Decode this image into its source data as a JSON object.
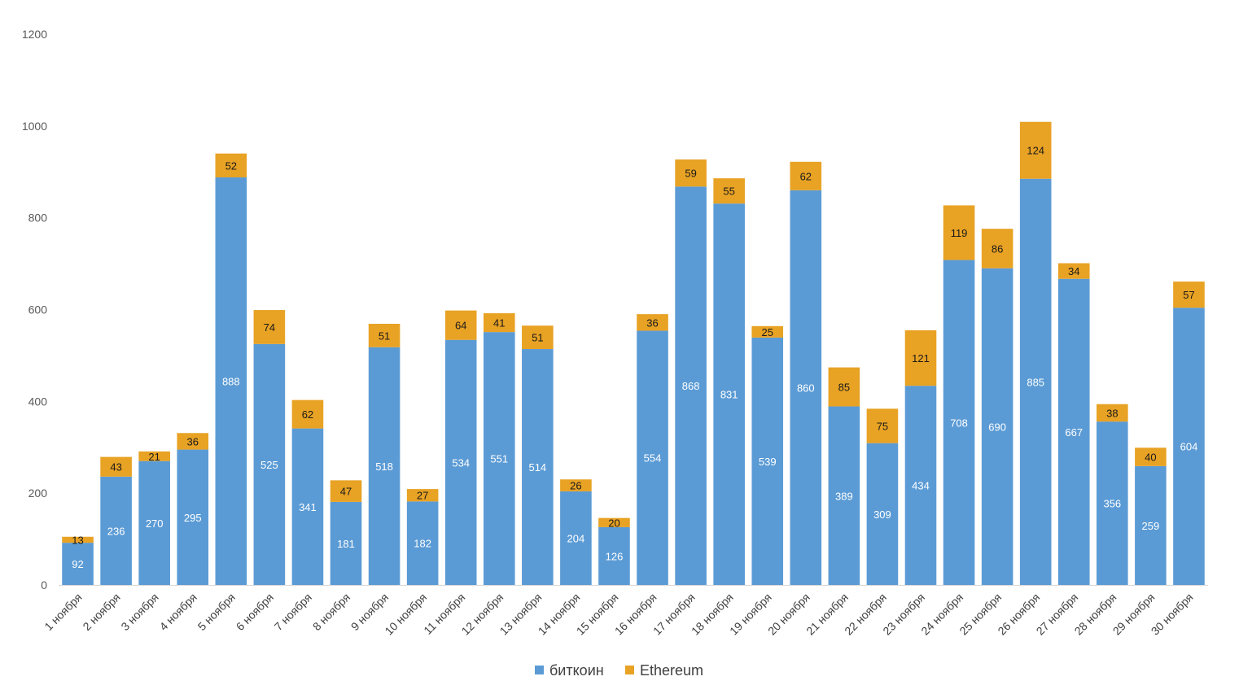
{
  "chart_data": {
    "type": "bar",
    "stacked": true,
    "categories": [
      "1 ноября",
      "2 ноября",
      "3 ноября",
      "4 ноября",
      "5 ноября",
      "6 ноября",
      "7 ноября",
      "8 ноября",
      "9 ноября",
      "10 ноября",
      "11 ноября",
      "12 ноября",
      "13 ноября",
      "14 ноября",
      "15 ноября",
      "16 ноября",
      "17 ноября",
      "18 ноября",
      "19 ноября",
      "20 ноября",
      "21 ноября",
      "22 ноября",
      "23 ноября",
      "24 ноября",
      "25 ноября",
      "26 ноября",
      "27 ноября",
      "28 ноября",
      "29 ноября",
      "30 ноября"
    ],
    "series": [
      {
        "name": "биткоин",
        "color": "#5b9bd5",
        "values": [
          92,
          236,
          270,
          295,
          888,
          525,
          341,
          181,
          518,
          182,
          534,
          551,
          514,
          204,
          126,
          554,
          868,
          831,
          539,
          860,
          389,
          309,
          434,
          708,
          690,
          885,
          667,
          356,
          259,
          604
        ]
      },
      {
        "name": "Ethereum",
        "color": "#e8a224",
        "values": [
          13,
          43,
          21,
          36,
          52,
          74,
          62,
          47,
          51,
          27,
          64,
          41,
          51,
          26,
          20,
          36,
          59,
          55,
          25,
          62,
          85,
          75,
          121,
          119,
          86,
          124,
          34,
          38,
          40,
          57
        ]
      }
    ],
    "yticks": [
      "0",
      "200",
      "400",
      "600",
      "800",
      "1000",
      "1200"
    ],
    "ylim": [
      0,
      1200
    ],
    "grid": false,
    "legend_position": "bottom",
    "title": "",
    "xlabel": "",
    "ylabel": ""
  }
}
